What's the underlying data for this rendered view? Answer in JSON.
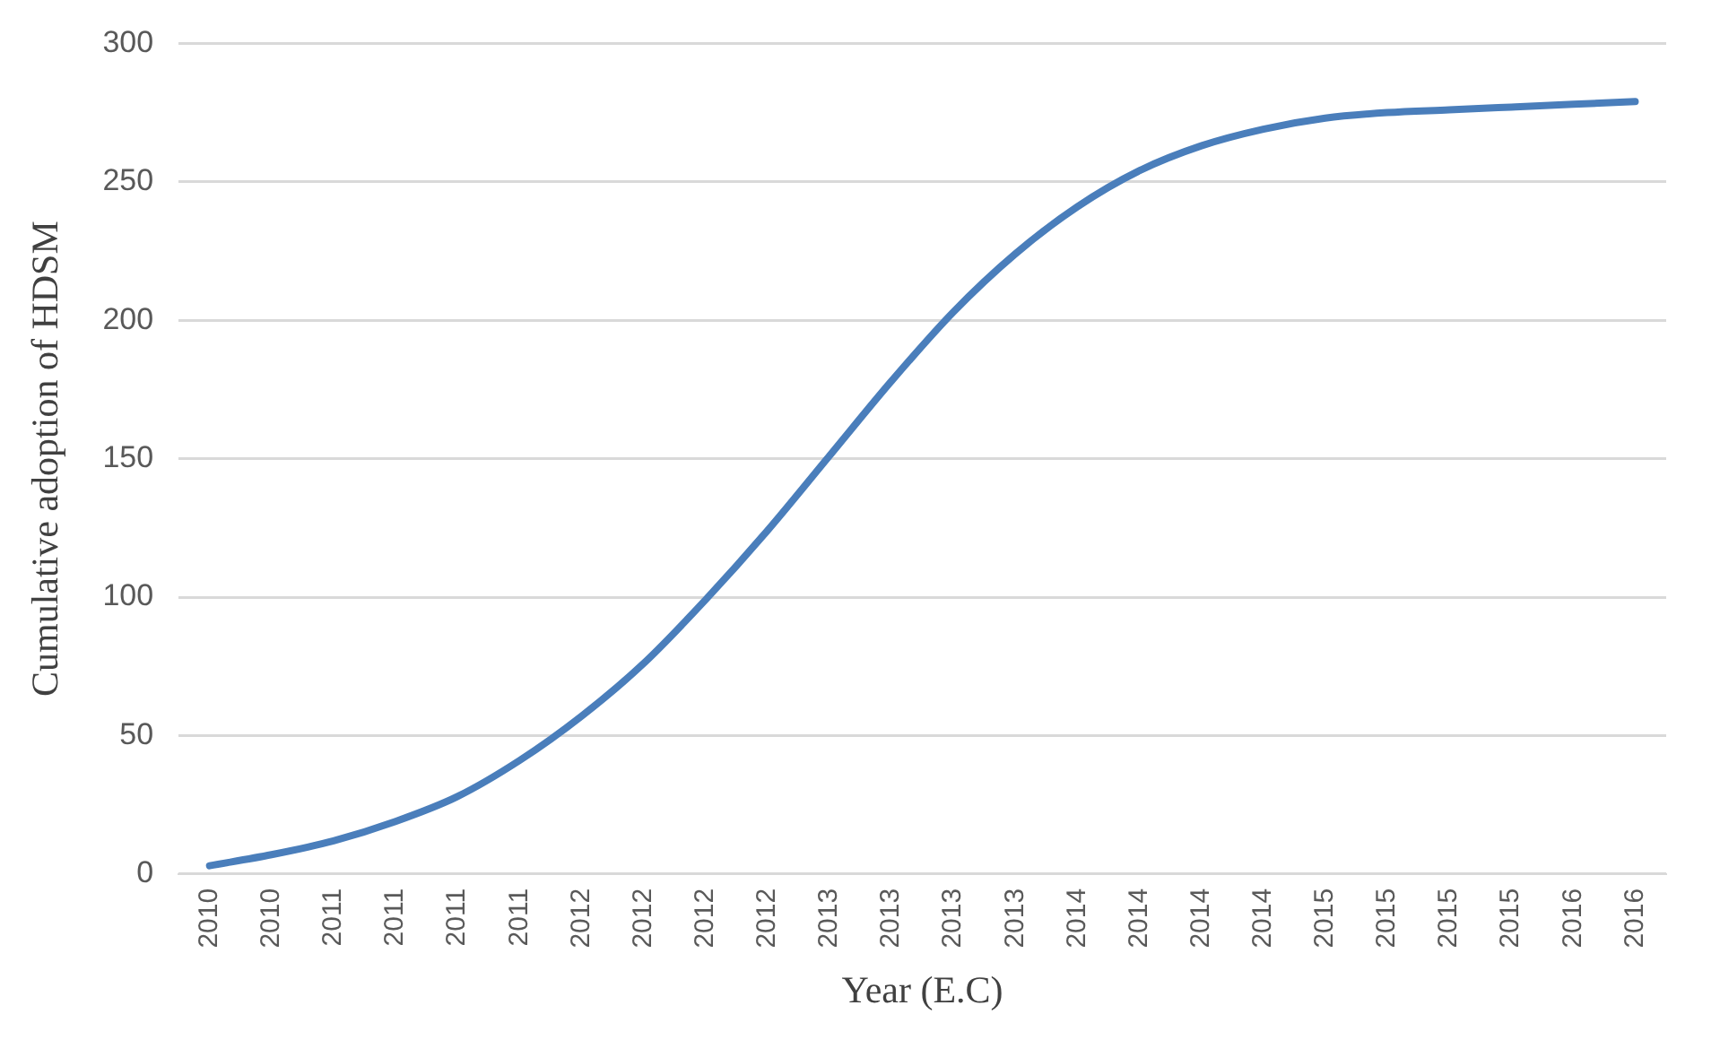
{
  "chart_data": {
    "type": "line",
    "xlabel": "Year (E.C)",
    "ylabel": "Cumulative adoption of HDSM",
    "categories": [
      "2010",
      "2010",
      "2011",
      "2011",
      "2011",
      "2011",
      "2012",
      "2012",
      "2012",
      "2012",
      "2013",
      "2013",
      "2013",
      "2013",
      "2014",
      "2014",
      "2014",
      "2014",
      "2015",
      "2015",
      "2015",
      "2015",
      "2016",
      "2016"
    ],
    "series": [
      {
        "color": "#4a7ebb",
        "values": [
          3,
          7,
          12,
          19,
          28,
          41,
          57,
          76,
          99,
          124,
          151,
          178,
          203,
          224,
          241,
          254,
          263,
          269,
          273,
          275,
          276,
          277,
          278,
          279
        ]
      }
    ],
    "ylim": [
      0,
      300
    ],
    "yticks": [
      0,
      50,
      100,
      150,
      200,
      250,
      300
    ],
    "grid": "y",
    "legend": false,
    "marker": "none",
    "line_style": "solid"
  }
}
